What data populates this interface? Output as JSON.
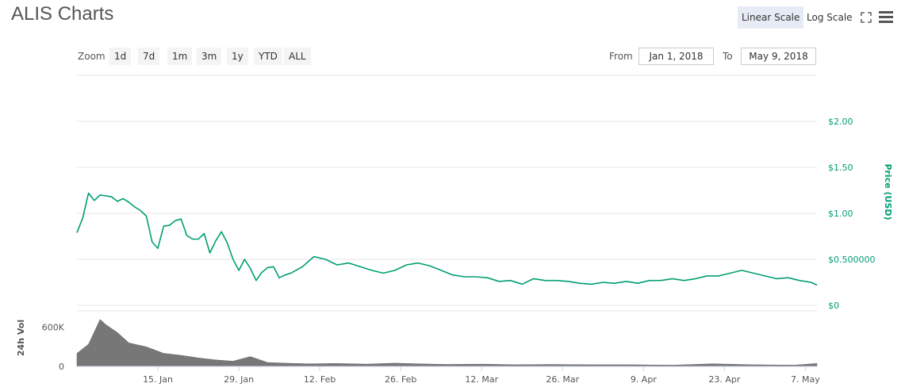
{
  "header": {
    "title": "ALIS Charts"
  },
  "scale": {
    "linear_label": "Linear Scale",
    "log_label": "Log Scale"
  },
  "icons": {
    "fullscreen": "fullscreen-icon",
    "menu": "hamburger-menu-icon"
  },
  "zoom": {
    "label": "Zoom",
    "buttons": [
      "1d",
      "7d",
      "1m",
      "3m",
      "1y",
      "YTD",
      "ALL"
    ]
  },
  "range": {
    "from_label": "From",
    "from_value": "Jan 1, 2018",
    "to_label": "To",
    "to_value": "May 9, 2018"
  },
  "colors": {
    "price": "#009e73",
    "volume": "#777777",
    "grid": "#e6e6e6"
  },
  "chart_data": [
    {
      "type": "line",
      "title": "",
      "ylabel": "Price (USD)",
      "y_axis_side": "right",
      "yticks": [
        "$0",
        "$0.500000",
        "$1.00",
        "$1.50",
        "$2.00"
      ],
      "ylim": [
        0,
        2.5
      ],
      "xticks": [
        "15. Jan",
        "29. Jan",
        "12. Feb",
        "26. Feb",
        "12. Mar",
        "26. Mar",
        "9. Apr",
        "23. Apr",
        "7. May"
      ],
      "xlim": [
        "2018-01-01",
        "2018-05-09"
      ],
      "series": [
        {
          "x": [
            "2018-01-01",
            "2018-01-02",
            "2018-01-03",
            "2018-01-04",
            "2018-01-05",
            "2018-01-06",
            "2018-01-07",
            "2018-01-08",
            "2018-01-09",
            "2018-01-10",
            "2018-01-11",
            "2018-01-12",
            "2018-01-13",
            "2018-01-14",
            "2018-01-15",
            "2018-01-16",
            "2018-01-17",
            "2018-01-18",
            "2018-01-19",
            "2018-01-20",
            "2018-01-21",
            "2018-01-22",
            "2018-01-23",
            "2018-01-24",
            "2018-01-25",
            "2018-01-26",
            "2018-01-27",
            "2018-01-28",
            "2018-01-29",
            "2018-01-30",
            "2018-01-31",
            "2018-02-01",
            "2018-02-02",
            "2018-02-03",
            "2018-02-04",
            "2018-02-05",
            "2018-02-06",
            "2018-02-07",
            "2018-02-09",
            "2018-02-11",
            "2018-02-13",
            "2018-02-15",
            "2018-02-17",
            "2018-02-19",
            "2018-02-21",
            "2018-02-23",
            "2018-02-25",
            "2018-02-27",
            "2018-03-01",
            "2018-03-03",
            "2018-03-05",
            "2018-03-07",
            "2018-03-09",
            "2018-03-11",
            "2018-03-13",
            "2018-03-15",
            "2018-03-17",
            "2018-03-19",
            "2018-03-21",
            "2018-03-23",
            "2018-03-25",
            "2018-03-27",
            "2018-03-29",
            "2018-03-31",
            "2018-04-02",
            "2018-04-04",
            "2018-04-06",
            "2018-04-08",
            "2018-04-10",
            "2018-04-12",
            "2018-04-14",
            "2018-04-16",
            "2018-04-18",
            "2018-04-20",
            "2018-04-22",
            "2018-04-24",
            "2018-04-26",
            "2018-04-28",
            "2018-04-30",
            "2018-05-02",
            "2018-05-04",
            "2018-05-06",
            "2018-05-08",
            "2018-05-09"
          ],
          "y": [
            0.79,
            0.95,
            1.22,
            1.14,
            1.2,
            1.19,
            1.18,
            1.13,
            1.16,
            1.12,
            1.07,
            1.03,
            0.97,
            0.69,
            0.62,
            0.86,
            0.87,
            0.92,
            0.94,
            0.76,
            0.72,
            0.72,
            0.78,
            0.57,
            0.7,
            0.8,
            0.68,
            0.5,
            0.38,
            0.5,
            0.4,
            0.27,
            0.36,
            0.41,
            0.42,
            0.3,
            0.33,
            0.35,
            0.42,
            0.53,
            0.5,
            0.44,
            0.46,
            0.42,
            0.38,
            0.35,
            0.38,
            0.44,
            0.46,
            0.43,
            0.38,
            0.33,
            0.31,
            0.31,
            0.3,
            0.26,
            0.27,
            0.23,
            0.29,
            0.27,
            0.27,
            0.26,
            0.24,
            0.23,
            0.25,
            0.24,
            0.26,
            0.24,
            0.27,
            0.27,
            0.29,
            0.27,
            0.29,
            0.32,
            0.32,
            0.35,
            0.38,
            0.35,
            0.32,
            0.29,
            0.3,
            0.27,
            0.25,
            0.22
          ]
        }
      ]
    },
    {
      "type": "area",
      "title": "",
      "ylabel": "24h Vol",
      "yticks": [
        "0",
        "600K"
      ],
      "ylim": [
        0,
        850000
      ],
      "xticks": [
        "15. Jan",
        "29. Jan",
        "12. Feb",
        "26. Feb",
        "12. Mar",
        "26. Mar",
        "9. Apr",
        "23. Apr",
        "7. May"
      ],
      "series": [
        {
          "x": [
            "2018-01-01",
            "2018-01-03",
            "2018-01-05",
            "2018-01-06",
            "2018-01-08",
            "2018-01-10",
            "2018-01-13",
            "2018-01-16",
            "2018-01-19",
            "2018-01-22",
            "2018-01-25",
            "2018-01-28",
            "2018-01-31",
            "2018-02-03",
            "2018-02-06",
            "2018-02-10",
            "2018-02-15",
            "2018-02-20",
            "2018-02-25",
            "2018-03-01",
            "2018-03-06",
            "2018-03-12",
            "2018-03-18",
            "2018-03-24",
            "2018-03-31",
            "2018-04-07",
            "2018-04-14",
            "2018-04-21",
            "2018-04-28",
            "2018-05-05",
            "2018-05-09"
          ],
          "y": [
            200000,
            340000,
            720000,
            640000,
            520000,
            360000,
            300000,
            200000,
            170000,
            130000,
            100000,
            80000,
            150000,
            60000,
            50000,
            40000,
            45000,
            35000,
            50000,
            40000,
            30000,
            35000,
            25000,
            30000,
            25000,
            25000,
            20000,
            40000,
            25000,
            20000,
            45000
          ]
        }
      ]
    }
  ]
}
